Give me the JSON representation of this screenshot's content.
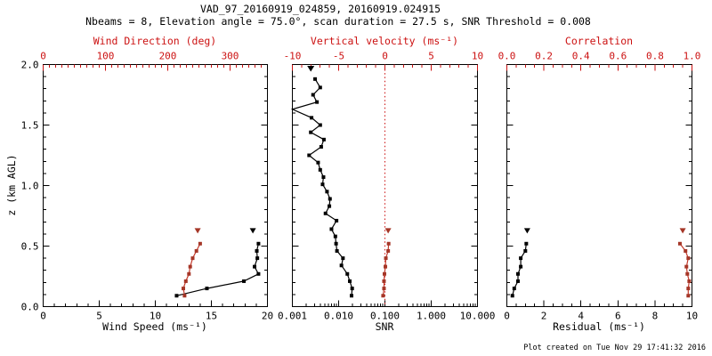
{
  "header": {
    "title": "VAD_97_20160919_024859, 20160919.024915",
    "subtitle": "Nbeams = 8, Elevation angle = 75.0°, scan duration = 27.5 s, SNR Threshold = 0.008"
  },
  "footer": {
    "created": "Plot created on Tue Nov 29 17:41:32 2016"
  },
  "colors": {
    "black": "#000000",
    "axis_red": "#cc1111",
    "data_red_line": "#c43a2c",
    "data_red_marker": "#a53627",
    "background": "#ffffff"
  },
  "chart_data": [
    {
      "id": "wind-panel",
      "type": "line",
      "y_axis": {
        "label": "z (km AGL)",
        "range": [
          0.0,
          2.0
        ],
        "ticks": [
          0.0,
          0.5,
          1.0,
          1.5,
          2.0
        ],
        "tick_labels": [
          "0.0",
          "0.5",
          "1.0",
          "1.5",
          "2.0"
        ],
        "minor_step": 0.1,
        "show_labels": true
      },
      "bottom_axis": {
        "label": "Wind Speed (ms⁻¹)",
        "scale": "linear",
        "range": [
          0,
          20
        ],
        "ticks": [
          0,
          5,
          10,
          15,
          20
        ],
        "tick_labels": [
          "0",
          "5",
          "10",
          "15",
          "20"
        ],
        "minor_step": 1,
        "color": "black"
      },
      "top_axis": {
        "label": "Wind Direction (deg)",
        "scale": "linear",
        "range": [
          0,
          360
        ],
        "ticks": [
          0,
          100,
          200,
          300
        ],
        "tick_labels": [
          "0",
          "100",
          "200",
          "300"
        ],
        "minor_step": 10,
        "color": "red"
      },
      "series": [
        {
          "name": "wind-speed",
          "axis": "bottom",
          "color": "black",
          "marker": "square",
          "isolated_marker": "triangle-down",
          "points": [
            {
              "z": 0.09,
              "v": 11.9
            },
            {
              "z": 0.15,
              "v": 14.6
            },
            {
              "z": 0.21,
              "v": 17.9
            },
            {
              "z": 0.27,
              "v": 19.2
            },
            {
              "z": 0.33,
              "v": 18.85
            },
            {
              "z": 0.4,
              "v": 19.1
            },
            {
              "z": 0.46,
              "v": 19.05
            },
            {
              "z": 0.52,
              "v": 19.2
            }
          ],
          "isolated": [
            {
              "z": 0.63,
              "v": 18.7
            }
          ]
        },
        {
          "name": "wind-direction",
          "axis": "top",
          "color": "red",
          "marker": "square",
          "isolated_marker": "triangle-down",
          "points": [
            {
              "z": 0.09,
              "v": 227
            },
            {
              "z": 0.15,
              "v": 225
            },
            {
              "z": 0.21,
              "v": 229
            },
            {
              "z": 0.27,
              "v": 234
            },
            {
              "z": 0.33,
              "v": 236
            },
            {
              "z": 0.4,
              "v": 240
            },
            {
              "z": 0.46,
              "v": 246
            },
            {
              "z": 0.52,
              "v": 252
            }
          ],
          "isolated": [
            {
              "z": 0.63,
              "v": 248
            }
          ]
        }
      ]
    },
    {
      "id": "snr-panel",
      "type": "line",
      "y_axis": {
        "range": [
          0.0,
          2.0
        ],
        "ticks": [
          0.0,
          0.5,
          1.0,
          1.5,
          2.0
        ],
        "minor_step": 0.1,
        "show_labels": false
      },
      "bottom_axis": {
        "label": "SNR",
        "scale": "log",
        "range": [
          0.001,
          10
        ],
        "ticks": [
          0.001,
          0.01,
          0.1,
          1,
          10
        ],
        "tick_labels": [
          "0.001",
          "0.010",
          "0.100",
          "1.000",
          "10.000"
        ],
        "color": "black"
      },
      "top_axis": {
        "label": "Vertical velocity (ms⁻¹)",
        "scale": "linear",
        "range": [
          -10,
          10
        ],
        "ticks": [
          -10,
          -5,
          0,
          5,
          10
        ],
        "tick_labels": [
          "-10",
          "-5",
          "0",
          "5",
          "10"
        ],
        "minor_step": 1,
        "color": "red"
      },
      "reference_line": {
        "axis": "top",
        "value": 0,
        "color": "red",
        "style": "dotted"
      },
      "series": [
        {
          "name": "snr-profile",
          "axis": "bottom",
          "color": "black",
          "marker": "square",
          "points": [
            {
              "z": 0.09,
              "v": 0.019
            },
            {
              "z": 0.15,
              "v": 0.0196
            },
            {
              "z": 0.21,
              "v": 0.0174
            },
            {
              "z": 0.27,
              "v": 0.0154
            },
            {
              "z": 0.34,
              "v": 0.0115
            },
            {
              "z": 0.4,
              "v": 0.0124
            },
            {
              "z": 0.46,
              "v": 0.0092
            },
            {
              "z": 0.52,
              "v": 0.0088
            },
            {
              "z": 0.58,
              "v": 0.0085
            },
            {
              "z": 0.64,
              "v": 0.007
            },
            {
              "z": 0.71,
              "v": 0.009
            },
            {
              "z": 0.77,
              "v": 0.0052
            },
            {
              "z": 0.83,
              "v": 0.0063
            },
            {
              "z": 0.89,
              "v": 0.0065
            },
            {
              "z": 0.95,
              "v": 0.0056
            },
            {
              "z": 1.01,
              "v": 0.0045
            },
            {
              "z": 1.07,
              "v": 0.0047
            },
            {
              "z": 1.13,
              "v": 0.004
            },
            {
              "z": 1.19,
              "v": 0.0036
            },
            {
              "z": 1.25,
              "v": 0.0023
            },
            {
              "z": 1.32,
              "v": 0.0042
            },
            {
              "z": 1.38,
              "v": 0.0048
            },
            {
              "z": 1.44,
              "v": 0.0025
            },
            {
              "z": 1.5,
              "v": 0.004
            },
            {
              "z": 1.56,
              "v": 0.0026
            },
            {
              "z": 1.63,
              "v": 0.0008
            },
            {
              "z": 1.69,
              "v": 0.0034
            },
            {
              "z": 1.75,
              "v": 0.0028
            },
            {
              "z": 1.81,
              "v": 0.004
            },
            {
              "z": 1.88,
              "v": 0.0031
            }
          ],
          "clipped_top": {
            "z": 2.0,
            "v": 0.0025,
            "marker": "triangle-down"
          }
        },
        {
          "name": "vertical-velocity",
          "axis": "top",
          "color": "red",
          "marker": "square",
          "isolated_marker": "triangle-down",
          "points": [
            {
              "z": 0.09,
              "v": -0.2
            },
            {
              "z": 0.15,
              "v": -0.1
            },
            {
              "z": 0.21,
              "v": -0.1
            },
            {
              "z": 0.27,
              "v": -0.05
            },
            {
              "z": 0.33,
              "v": 0.05
            },
            {
              "z": 0.4,
              "v": 0.1
            },
            {
              "z": 0.46,
              "v": 0.35
            },
            {
              "z": 0.52,
              "v": 0.4
            }
          ],
          "isolated": [
            {
              "z": 0.63,
              "v": 0.35
            }
          ]
        }
      ]
    },
    {
      "id": "residual-panel",
      "type": "line",
      "y_axis": {
        "range": [
          0.0,
          2.0
        ],
        "ticks": [
          0.0,
          0.5,
          1.0,
          1.5,
          2.0
        ],
        "minor_step": 0.1,
        "show_labels": false
      },
      "bottom_axis": {
        "label": "Residual (ms⁻¹)",
        "scale": "linear",
        "range": [
          0,
          10
        ],
        "ticks": [
          0,
          2,
          4,
          6,
          8,
          10
        ],
        "tick_labels": [
          "0",
          "2",
          "4",
          "6",
          "8",
          "10"
        ],
        "minor_step": 0.5,
        "color": "black"
      },
      "top_axis": {
        "label": "Correlation",
        "scale": "linear",
        "range": [
          0,
          1
        ],
        "ticks": [
          0,
          0.2,
          0.4,
          0.6,
          0.8,
          1.0
        ],
        "tick_labels": [
          "0.0",
          "0.2",
          "0.4",
          "0.6",
          "0.8",
          "1.0"
        ],
        "minor_step": 0.05,
        "color": "red"
      },
      "series": [
        {
          "name": "residual",
          "axis": "bottom",
          "color": "black",
          "marker": "square",
          "isolated_marker": "triangle-down",
          "points": [
            {
              "z": 0.09,
              "v": 0.3
            },
            {
              "z": 0.15,
              "v": 0.4
            },
            {
              "z": 0.21,
              "v": 0.6
            },
            {
              "z": 0.27,
              "v": 0.6
            },
            {
              "z": 0.33,
              "v": 0.75
            },
            {
              "z": 0.4,
              "v": 0.75
            },
            {
              "z": 0.46,
              "v": 1.0
            },
            {
              "z": 0.52,
              "v": 1.05
            }
          ],
          "isolated": [
            {
              "z": 0.63,
              "v": 1.1
            }
          ]
        },
        {
          "name": "correlation",
          "axis": "top",
          "color": "red",
          "marker": "square",
          "isolated_marker": "triangle-down",
          "points": [
            {
              "z": 0.09,
              "v": 0.98
            },
            {
              "z": 0.15,
              "v": 0.98
            },
            {
              "z": 0.21,
              "v": 0.985
            },
            {
              "z": 0.27,
              "v": 0.975
            },
            {
              "z": 0.33,
              "v": 0.97
            },
            {
              "z": 0.4,
              "v": 0.98
            },
            {
              "z": 0.46,
              "v": 0.965
            },
            {
              "z": 0.52,
              "v": 0.935
            }
          ],
          "isolated": [
            {
              "z": 0.63,
              "v": 0.95
            }
          ]
        }
      ]
    }
  ]
}
